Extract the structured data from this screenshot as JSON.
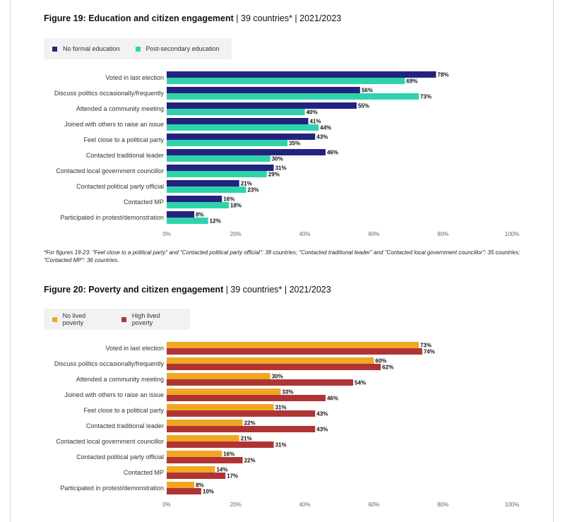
{
  "charts": [
    {
      "title_bold": "Figure 19: Education and citizen engagement",
      "title_rest": " | 39 countries* | 2021/2023",
      "legend": [
        {
          "label": "No formal education",
          "color": "#23237f"
        },
        {
          "label": "Post-secondary education",
          "color": "#2ed3ad"
        }
      ]
    },
    {
      "title_bold": "Figure 20: Poverty and citizen engagement",
      "title_rest": " | 39 countries* | 2021/2023",
      "legend": [
        {
          "label": "No lived poverty",
          "color": "#f2a724"
        },
        {
          "label": "High lived poverty",
          "color": "#b03434"
        }
      ]
    }
  ],
  "footnote": "*For figures 19-23: \"Feel close to a political party\" and \"Contacted political party official\": 38 countries; \"Contacted traditional leader\" and \"Contacted local government councillor\": 35 countries; \"Contacted MP\": 36 countries.",
  "chart_data": [
    {
      "type": "bar",
      "orientation": "horizontal",
      "title": "Figure 19: Education and citizen engagement | 39 countries* | 2021/2023",
      "categories": [
        "Voted in last election",
        "Discuss politics occasionally/frequently",
        "Attended a community meeting",
        "Joined with others to raise an issue",
        "Feel close to a political party",
        "Contacted traditional leader",
        "Contacted local government councillor",
        "Contacted political party official",
        "Contacted MP",
        "Participated in protest/demonstration"
      ],
      "series": [
        {
          "name": "No formal education",
          "color": "#23237f",
          "values": [
            78,
            56,
            55,
            41,
            43,
            46,
            31,
            21,
            16,
            8
          ]
        },
        {
          "name": "Post-secondary education",
          "color": "#2ed3ad",
          "values": [
            69,
            73,
            40,
            44,
            35,
            30,
            29,
            23,
            18,
            12
          ]
        }
      ],
      "xticks": [
        "0%",
        "20%",
        "40%",
        "60%",
        "80%",
        "100%"
      ],
      "xlim": [
        0,
        100
      ],
      "value_suffix": "%",
      "legend_position": "top-left",
      "grid": false
    },
    {
      "type": "bar",
      "orientation": "horizontal",
      "title": "Figure 20: Poverty and citizen engagement | 39 countries* | 2021/2023",
      "categories": [
        "Voted in last election",
        "Discuss politics occasionally/frequently",
        "Attended a community meeting",
        "Joined with others to raise an issue",
        "Feel close to a political party",
        "Contacted traditional leader",
        "Contacted local government councillor",
        "Contacted political party official",
        "Contacted MP",
        "Participated in protest/demonstration"
      ],
      "series": [
        {
          "name": "No lived poverty",
          "color": "#f2a724",
          "values": [
            73,
            60,
            30,
            33,
            31,
            22,
            21,
            16,
            14,
            8
          ]
        },
        {
          "name": "High lived poverty",
          "color": "#b03434",
          "values": [
            74,
            62,
            54,
            46,
            43,
            43,
            31,
            22,
            17,
            10
          ]
        }
      ],
      "xticks": [
        "0%",
        "20%",
        "40%",
        "60%",
        "80%",
        "100%"
      ],
      "xlim": [
        0,
        100
      ],
      "value_suffix": "%",
      "legend_position": "top-left",
      "grid": false
    }
  ]
}
